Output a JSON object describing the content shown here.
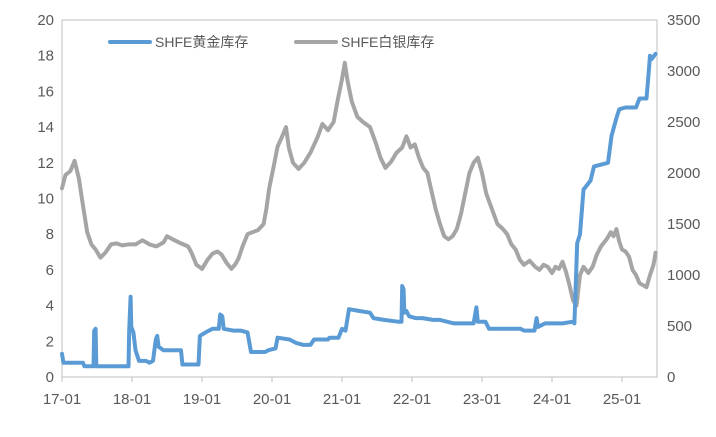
{
  "chart_data": {
    "type": "line",
    "title": "",
    "xlabel": "",
    "ylabel": "",
    "y2label": "",
    "grid": false,
    "legend_position": "top",
    "x_tick_labels": [
      "17-01",
      "18-01",
      "19-01",
      "20-01",
      "21-01",
      "22-01",
      "23-01",
      "24-01",
      "25-01"
    ],
    "x_range": [
      2017.0,
      2025.5
    ],
    "left_axis": {
      "ylim": [
        0,
        20
      ],
      "ticks": [
        0,
        2,
        4,
        6,
        8,
        10,
        12,
        14,
        16,
        18,
        20
      ]
    },
    "right_axis": {
      "ylim": [
        0,
        3500
      ],
      "ticks": [
        0,
        500,
        1000,
        1500,
        2000,
        2500,
        3000,
        3500
      ]
    },
    "series": [
      {
        "name": "SHFE黄金库存",
        "axis": "left",
        "color": "#5B9BD5",
        "points": [
          [
            2017.0,
            1.3
          ],
          [
            2017.02,
            0.8
          ],
          [
            2017.3,
            0.8
          ],
          [
            2017.32,
            0.6
          ],
          [
            2017.45,
            0.6
          ],
          [
            2017.46,
            2.6
          ],
          [
            2017.48,
            2.7
          ],
          [
            2017.49,
            0.6
          ],
          [
            2017.95,
            0.6
          ],
          [
            2017.96,
            2.6
          ],
          [
            2017.98,
            4.5
          ],
          [
            2017.99,
            2.8
          ],
          [
            2018.02,
            2.5
          ],
          [
            2018.05,
            1.5
          ],
          [
            2018.1,
            0.9
          ],
          [
            2018.2,
            0.9
          ],
          [
            2018.25,
            0.8
          ],
          [
            2018.3,
            0.9
          ],
          [
            2018.34,
            2.1
          ],
          [
            2018.36,
            2.3
          ],
          [
            2018.38,
            1.7
          ],
          [
            2018.45,
            1.5
          ],
          [
            2018.7,
            1.5
          ],
          [
            2018.72,
            0.7
          ],
          [
            2018.95,
            0.7
          ],
          [
            2018.97,
            2.3
          ],
          [
            2019.05,
            2.5
          ],
          [
            2019.15,
            2.7
          ],
          [
            2019.24,
            2.7
          ],
          [
            2019.26,
            3.5
          ],
          [
            2019.29,
            3.4
          ],
          [
            2019.31,
            2.7
          ],
          [
            2019.45,
            2.6
          ],
          [
            2019.55,
            2.6
          ],
          [
            2019.65,
            2.5
          ],
          [
            2019.7,
            1.4
          ],
          [
            2019.9,
            1.4
          ],
          [
            2019.95,
            1.5
          ],
          [
            2020.05,
            1.6
          ],
          [
            2020.08,
            2.2
          ],
          [
            2020.25,
            2.1
          ],
          [
            2020.35,
            1.9
          ],
          [
            2020.45,
            1.8
          ],
          [
            2020.55,
            1.8
          ],
          [
            2020.6,
            2.1
          ],
          [
            2020.8,
            2.1
          ],
          [
            2020.82,
            2.2
          ],
          [
            2020.95,
            2.2
          ],
          [
            2021.0,
            2.7
          ],
          [
            2021.05,
            2.6
          ],
          [
            2021.1,
            3.8
          ],
          [
            2021.25,
            3.7
          ],
          [
            2021.4,
            3.6
          ],
          [
            2021.45,
            3.3
          ],
          [
            2021.6,
            3.2
          ],
          [
            2021.8,
            3.1
          ],
          [
            2021.85,
            3.1
          ],
          [
            2021.86,
            5.1
          ],
          [
            2021.88,
            4.9
          ],
          [
            2021.89,
            3.6
          ],
          [
            2021.92,
            3.7
          ],
          [
            2021.96,
            3.4
          ],
          [
            2022.05,
            3.3
          ],
          [
            2022.15,
            3.3
          ],
          [
            2022.3,
            3.2
          ],
          [
            2022.4,
            3.2
          ],
          [
            2022.6,
            3.0
          ],
          [
            2022.7,
            3.0
          ],
          [
            2022.88,
            3.0
          ],
          [
            2022.92,
            3.9
          ],
          [
            2022.94,
            3.1
          ],
          [
            2023.05,
            3.1
          ],
          [
            2023.1,
            2.7
          ],
          [
            2023.4,
            2.7
          ],
          [
            2023.55,
            2.7
          ],
          [
            2023.6,
            2.6
          ],
          [
            2023.75,
            2.6
          ],
          [
            2023.78,
            3.3
          ],
          [
            2023.8,
            2.8
          ],
          [
            2023.85,
            2.9
          ],
          [
            2023.9,
            3.0
          ],
          [
            2024.0,
            3.0
          ],
          [
            2024.15,
            3.0
          ],
          [
            2024.3,
            3.1
          ],
          [
            2024.32,
            3.0
          ],
          [
            2024.36,
            7.5
          ],
          [
            2024.4,
            8.0
          ],
          [
            2024.45,
            10.5
          ],
          [
            2024.55,
            11.0
          ],
          [
            2024.6,
            11.8
          ],
          [
            2024.8,
            12.0
          ],
          [
            2024.85,
            13.5
          ],
          [
            2024.92,
            14.5
          ],
          [
            2024.96,
            15.0
          ],
          [
            2025.05,
            15.1
          ],
          [
            2025.2,
            15.1
          ],
          [
            2025.25,
            15.6
          ],
          [
            2025.35,
            15.6
          ],
          [
            2025.38,
            17.0
          ],
          [
            2025.4,
            18.0
          ],
          [
            2025.42,
            17.8
          ],
          [
            2025.48,
            18.1
          ]
        ]
      },
      {
        "name": "SHFE白银库存",
        "axis": "right",
        "color": "#A5A5A5",
        "points": [
          [
            2017.0,
            1850
          ],
          [
            2017.05,
            1980
          ],
          [
            2017.12,
            2020
          ],
          [
            2017.18,
            2120
          ],
          [
            2017.24,
            1950
          ],
          [
            2017.3,
            1680
          ],
          [
            2017.36,
            1420
          ],
          [
            2017.42,
            1300
          ],
          [
            2017.48,
            1250
          ],
          [
            2017.55,
            1170
          ],
          [
            2017.62,
            1220
          ],
          [
            2017.7,
            1300
          ],
          [
            2017.78,
            1310
          ],
          [
            2017.86,
            1290
          ],
          [
            2017.95,
            1300
          ],
          [
            2018.05,
            1300
          ],
          [
            2018.15,
            1340
          ],
          [
            2018.25,
            1300
          ],
          [
            2018.35,
            1280
          ],
          [
            2018.45,
            1320
          ],
          [
            2018.5,
            1380
          ],
          [
            2018.58,
            1350
          ],
          [
            2018.7,
            1310
          ],
          [
            2018.8,
            1280
          ],
          [
            2018.85,
            1220
          ],
          [
            2018.92,
            1100
          ],
          [
            2019.0,
            1060
          ],
          [
            2019.08,
            1150
          ],
          [
            2019.15,
            1210
          ],
          [
            2019.22,
            1230
          ],
          [
            2019.28,
            1200
          ],
          [
            2019.35,
            1120
          ],
          [
            2019.42,
            1060
          ],
          [
            2019.48,
            1110
          ],
          [
            2019.52,
            1160
          ],
          [
            2019.58,
            1280
          ],
          [
            2019.65,
            1400
          ],
          [
            2019.72,
            1420
          ],
          [
            2019.8,
            1440
          ],
          [
            2019.88,
            1500
          ],
          [
            2019.92,
            1650
          ],
          [
            2019.96,
            1850
          ],
          [
            2020.02,
            2050
          ],
          [
            2020.08,
            2260
          ],
          [
            2020.14,
            2350
          ],
          [
            2020.2,
            2450
          ],
          [
            2020.24,
            2250
          ],
          [
            2020.3,
            2100
          ],
          [
            2020.38,
            2040
          ],
          [
            2020.46,
            2100
          ],
          [
            2020.55,
            2200
          ],
          [
            2020.65,
            2350
          ],
          [
            2020.72,
            2480
          ],
          [
            2020.8,
            2420
          ],
          [
            2020.88,
            2500
          ],
          [
            2020.94,
            2720
          ],
          [
            2021.0,
            2920
          ],
          [
            2021.04,
            3080
          ],
          [
            2021.08,
            2900
          ],
          [
            2021.14,
            2700
          ],
          [
            2021.22,
            2550
          ],
          [
            2021.3,
            2500
          ],
          [
            2021.4,
            2450
          ],
          [
            2021.48,
            2300
          ],
          [
            2021.55,
            2150
          ],
          [
            2021.62,
            2050
          ],
          [
            2021.7,
            2110
          ],
          [
            2021.78,
            2200
          ],
          [
            2021.86,
            2250
          ],
          [
            2021.92,
            2360
          ],
          [
            2021.98,
            2250
          ],
          [
            2022.04,
            2280
          ],
          [
            2022.1,
            2150
          ],
          [
            2022.16,
            2050
          ],
          [
            2022.22,
            2000
          ],
          [
            2022.28,
            1820
          ],
          [
            2022.34,
            1640
          ],
          [
            2022.4,
            1500
          ],
          [
            2022.46,
            1380
          ],
          [
            2022.52,
            1350
          ],
          [
            2022.58,
            1380
          ],
          [
            2022.64,
            1450
          ],
          [
            2022.7,
            1600
          ],
          [
            2022.76,
            1800
          ],
          [
            2022.82,
            2000
          ],
          [
            2022.88,
            2100
          ],
          [
            2022.94,
            2150
          ],
          [
            2023.0,
            2000
          ],
          [
            2023.06,
            1800
          ],
          [
            2023.14,
            1650
          ],
          [
            2023.22,
            1500
          ],
          [
            2023.3,
            1450
          ],
          [
            2023.36,
            1400
          ],
          [
            2023.42,
            1300
          ],
          [
            2023.48,
            1250
          ],
          [
            2023.54,
            1150
          ],
          [
            2023.6,
            1100
          ],
          [
            2023.68,
            1140
          ],
          [
            2023.76,
            1080
          ],
          [
            2023.82,
            1050
          ],
          [
            2023.88,
            1100
          ],
          [
            2023.94,
            1080
          ],
          [
            2024.0,
            1020
          ],
          [
            2024.05,
            1080
          ],
          [
            2024.1,
            1060
          ],
          [
            2024.15,
            1130
          ],
          [
            2024.2,
            1030
          ],
          [
            2024.25,
            900
          ],
          [
            2024.3,
            750
          ],
          [
            2024.35,
            700
          ],
          [
            2024.4,
            1000
          ],
          [
            2024.45,
            1080
          ],
          [
            2024.52,
            1020
          ],
          [
            2024.58,
            1080
          ],
          [
            2024.64,
            1200
          ],
          [
            2024.7,
            1280
          ],
          [
            2024.78,
            1350
          ],
          [
            2024.84,
            1420
          ],
          [
            2024.88,
            1380
          ],
          [
            2024.92,
            1450
          ],
          [
            2024.96,
            1330
          ],
          [
            2025.0,
            1250
          ],
          [
            2025.05,
            1230
          ],
          [
            2025.1,
            1180
          ],
          [
            2025.15,
            1050
          ],
          [
            2025.2,
            1000
          ],
          [
            2025.25,
            920
          ],
          [
            2025.3,
            900
          ],
          [
            2025.35,
            880
          ],
          [
            2025.4,
            1000
          ],
          [
            2025.45,
            1100
          ],
          [
            2025.48,
            1220
          ]
        ]
      }
    ]
  }
}
